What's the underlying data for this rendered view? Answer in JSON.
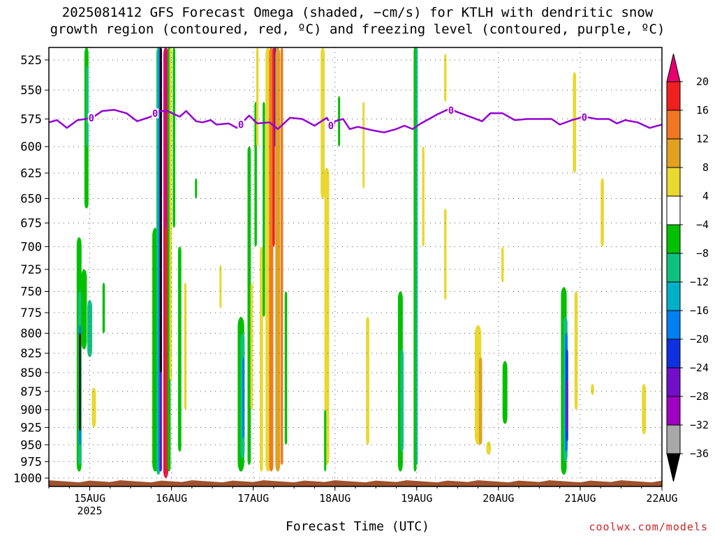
{
  "chart_data": {
    "type": "heatmap",
    "title_lines": [
      "2025081412 GFS Forecast Omega (shaded, −cm/s) for KTLH with dendritic snow",
      "growth region (contoured, red, ºC) and freezing level (contoured, purple, ºC)"
    ],
    "xlabel": "Forecast Time (UTC)",
    "x_ticks": [
      "15AUG",
      "16AUG",
      "17AUG",
      "18AUG",
      "19AUG",
      "20AUG",
      "21AUG",
      "22AUG"
    ],
    "x_year_label": "2025",
    "y_levels": [
      525,
      550,
      575,
      600,
      625,
      650,
      675,
      700,
      725,
      750,
      775,
      800,
      825,
      850,
      875,
      900,
      925,
      950,
      975,
      1000
    ],
    "y_tick_labels": [
      "525",
      "550",
      "575",
      "600",
      "625",
      "650",
      "675",
      "700",
      "725",
      "750",
      "775",
      "800",
      "825",
      "850",
      "875",
      "900",
      "925",
      "950",
      "975",
      "1000"
    ],
    "grid": true,
    "colorbar": {
      "labels": [
        "20",
        "16",
        "12",
        "8",
        "4",
        "−4",
        "−8",
        "−12",
        "−16",
        "−20",
        "−24",
        "−28",
        "−32",
        "−36"
      ],
      "colors": [
        "#e8006f",
        "#f02020",
        "#f07820",
        "#e0a020",
        "#e8d830",
        "#ffffff",
        "#00c000",
        "#10c080",
        "#00b0c8",
        "#0080f0",
        "#1030e0",
        "#7010c8",
        "#a000c0",
        "#a8a8a8"
      ],
      "end_colors": {
        "top": "#e8006f",
        "bottom": "#000000"
      }
    },
    "freezing_level": {
      "label": "0",
      "color": "#9400d3",
      "points": [
        [
          14.5,
          578
        ],
        [
          14.6,
          576
        ],
        [
          14.72,
          583
        ],
        [
          14.85,
          576
        ],
        [
          14.95,
          575
        ],
        [
          15.05,
          573
        ],
        [
          15.15,
          568
        ],
        [
          15.3,
          567
        ],
        [
          15.45,
          570
        ],
        [
          15.58,
          577
        ],
        [
          15.75,
          573
        ],
        [
          15.82,
          568
        ],
        [
          15.95,
          568
        ],
        [
          16.1,
          573
        ],
        [
          16.18,
          568
        ],
        [
          16.3,
          577
        ],
        [
          16.38,
          578
        ],
        [
          16.48,
          576
        ],
        [
          16.55,
          580
        ],
        [
          16.7,
          579
        ],
        [
          16.8,
          583
        ],
        [
          16.95,
          572
        ],
        [
          17.05,
          579
        ],
        [
          17.2,
          578
        ],
        [
          17.3,
          584
        ],
        [
          17.45,
          574
        ],
        [
          17.6,
          575
        ],
        [
          17.75,
          581
        ],
        [
          17.9,
          574
        ],
        [
          17.97,
          583
        ],
        [
          18.0,
          577
        ],
        [
          18.1,
          575
        ],
        [
          18.18,
          584
        ],
        [
          18.28,
          582
        ],
        [
          18.45,
          585
        ],
        [
          18.6,
          587
        ],
        [
          18.75,
          584
        ],
        [
          18.85,
          581
        ],
        [
          18.95,
          584
        ],
        [
          19.05,
          579
        ],
        [
          19.15,
          575
        ],
        [
          19.25,
          571
        ],
        [
          19.4,
          566
        ],
        [
          19.5,
          569
        ],
        [
          19.65,
          573
        ],
        [
          19.8,
          577
        ],
        [
          19.9,
          570
        ],
        [
          20.05,
          570
        ],
        [
          20.2,
          576
        ],
        [
          20.35,
          575
        ],
        [
          20.5,
          575
        ],
        [
          20.65,
          575
        ],
        [
          20.75,
          580
        ],
        [
          20.9,
          576
        ],
        [
          21.05,
          573
        ],
        [
          21.2,
          575
        ],
        [
          21.35,
          575
        ],
        [
          21.45,
          579
        ],
        [
          21.55,
          576
        ],
        [
          21.7,
          578
        ],
        [
          21.85,
          583
        ],
        [
          22.0,
          580
        ],
        [
          22.05,
          580
        ]
      ],
      "contour_labels_at": [
        15.02,
        15.8,
        16.85,
        17.95,
        19.42,
        21.05
      ]
    },
    "omega_streaks": [
      {
        "x": 14.87,
        "top": 690,
        "bottom": 990,
        "w": 0.06,
        "c": "#00c000"
      },
      {
        "x": 14.88,
        "top": 750,
        "bottom": 980,
        "w": 0.04,
        "c": "#10c080"
      },
      {
        "x": 14.88,
        "top": 790,
        "bottom": 950,
        "w": 0.025,
        "c": "#0080f0"
      },
      {
        "x": 14.88,
        "top": 800,
        "bottom": 930,
        "w": 0.012,
        "c": "#202020"
      },
      {
        "x": 14.93,
        "top": 725,
        "bottom": 820,
        "w": 0.07,
        "c": "#00c000"
      },
      {
        "x": 14.96,
        "top": 515,
        "bottom": 660,
        "w": 0.05,
        "c": "#00c000"
      },
      {
        "x": 14.97,
        "top": 530,
        "bottom": 600,
        "w": 0.03,
        "c": "#10c080"
      },
      {
        "x": 15.0,
        "top": 760,
        "bottom": 830,
        "w": 0.06,
        "c": "#10c080"
      },
      {
        "x": 15.05,
        "top": 870,
        "bottom": 925,
        "w": 0.05,
        "c": "#e8d830"
      },
      {
        "x": 15.17,
        "top": 740,
        "bottom": 800,
        "w": 0.03,
        "c": "#00c000"
      },
      {
        "x": 15.8,
        "top": 680,
        "bottom": 990,
        "w": 0.07,
        "c": "#00c000"
      },
      {
        "x": 15.84,
        "top": 515,
        "bottom": 995,
        "w": 0.05,
        "c": "#10c080"
      },
      {
        "x": 15.86,
        "top": 515,
        "bottom": 990,
        "w": 0.04,
        "c": "#0080f0"
      },
      {
        "x": 15.87,
        "top": 515,
        "bottom": 990,
        "w": 0.025,
        "c": "#7010c8"
      },
      {
        "x": 15.87,
        "top": 515,
        "bottom": 850,
        "w": 0.015,
        "c": "#000000"
      },
      {
        "x": 15.93,
        "top": 515,
        "bottom": 1000,
        "w": 0.06,
        "c": "#e8006f"
      },
      {
        "x": 15.93,
        "top": 680,
        "bottom": 1000,
        "w": 0.03,
        "c": "#f02020"
      },
      {
        "x": 15.97,
        "top": 515,
        "bottom": 990,
        "w": 0.04,
        "c": "#00c000"
      },
      {
        "x": 15.99,
        "top": 515,
        "bottom": 860,
        "w": 0.03,
        "c": "#e8d830"
      },
      {
        "x": 16.03,
        "top": 515,
        "bottom": 680,
        "w": 0.03,
        "c": "#00c000"
      },
      {
        "x": 16.1,
        "top": 700,
        "bottom": 960,
        "w": 0.04,
        "c": "#00c000"
      },
      {
        "x": 16.17,
        "top": 740,
        "bottom": 900,
        "w": 0.03,
        "c": "#e8d830"
      },
      {
        "x": 16.3,
        "top": 630,
        "bottom": 650,
        "w": 0.015,
        "c": "#00c000"
      },
      {
        "x": 16.6,
        "top": 720,
        "bottom": 770,
        "w": 0.02,
        "c": "#e8d830"
      },
      {
        "x": 16.85,
        "top": 780,
        "bottom": 990,
        "w": 0.08,
        "c": "#00c000"
      },
      {
        "x": 16.87,
        "top": 800,
        "bottom": 970,
        "w": 0.05,
        "c": "#10c080"
      },
      {
        "x": 16.88,
        "top": 830,
        "bottom": 940,
        "w": 0.025,
        "c": "#0080f0"
      },
      {
        "x": 16.95,
        "top": 600,
        "bottom": 980,
        "w": 0.04,
        "c": "#00c000"
      },
      {
        "x": 16.98,
        "top": 740,
        "bottom": 900,
        "w": 0.03,
        "c": "#e8d830"
      },
      {
        "x": 17.03,
        "top": 560,
        "bottom": 700,
        "w": 0.03,
        "c": "#00c000"
      },
      {
        "x": 17.05,
        "top": 515,
        "bottom": 600,
        "w": 0.03,
        "c": "#e8d830"
      },
      {
        "x": 17.1,
        "top": 700,
        "bottom": 990,
        "w": 0.04,
        "c": "#e8d830"
      },
      {
        "x": 17.13,
        "top": 560,
        "bottom": 780,
        "w": 0.03,
        "c": "#00c000"
      },
      {
        "x": 17.18,
        "top": 515,
        "bottom": 990,
        "w": 0.06,
        "c": "#e8d830"
      },
      {
        "x": 17.22,
        "top": 515,
        "bottom": 990,
        "w": 0.05,
        "c": "#f07820"
      },
      {
        "x": 17.25,
        "top": 515,
        "bottom": 700,
        "w": 0.03,
        "c": "#f02020"
      },
      {
        "x": 17.27,
        "top": 515,
        "bottom": 600,
        "w": 0.025,
        "c": "#7010c8"
      },
      {
        "x": 17.3,
        "top": 515,
        "bottom": 990,
        "w": 0.06,
        "c": "#e0a020"
      },
      {
        "x": 17.35,
        "top": 515,
        "bottom": 980,
        "w": 0.03,
        "c": "#f07820"
      },
      {
        "x": 17.4,
        "top": 750,
        "bottom": 950,
        "w": 0.03,
        "c": "#00c000"
      },
      {
        "x": 17.85,
        "top": 515,
        "bottom": 650,
        "w": 0.05,
        "c": "#e8d830"
      },
      {
        "x": 17.9,
        "top": 620,
        "bottom": 980,
        "w": 0.06,
        "c": "#e8d830"
      },
      {
        "x": 17.88,
        "top": 900,
        "bottom": 990,
        "w": 0.025,
        "c": "#00c000"
      },
      {
        "x": 18.05,
        "top": 555,
        "bottom": 600,
        "w": 0.02,
        "c": "#00c000"
      },
      {
        "x": 18.35,
        "top": 560,
        "bottom": 640,
        "w": 0.025,
        "c": "#e8d830"
      },
      {
        "x": 18.4,
        "top": 780,
        "bottom": 950,
        "w": 0.04,
        "c": "#e8d830"
      },
      {
        "x": 18.8,
        "top": 750,
        "bottom": 990,
        "w": 0.06,
        "c": "#00c000"
      },
      {
        "x": 18.82,
        "top": 820,
        "bottom": 960,
        "w": 0.04,
        "c": "#10c080"
      },
      {
        "x": 18.98,
        "top": 515,
        "bottom": 990,
        "w": 0.035,
        "c": "#00c000"
      },
      {
        "x": 19.0,
        "top": 515,
        "bottom": 980,
        "w": 0.02,
        "c": "#10c080"
      },
      {
        "x": 19.08,
        "top": 600,
        "bottom": 700,
        "w": 0.03,
        "c": "#e8d830"
      },
      {
        "x": 19.35,
        "top": 520,
        "bottom": 560,
        "w": 0.03,
        "c": "#e8d830"
      },
      {
        "x": 19.35,
        "top": 660,
        "bottom": 760,
        "w": 0.03,
        "c": "#e8d830"
      },
      {
        "x": 19.75,
        "top": 790,
        "bottom": 950,
        "w": 0.08,
        "c": "#e8d830"
      },
      {
        "x": 19.78,
        "top": 830,
        "bottom": 950,
        "w": 0.04,
        "c": "#e0a020"
      },
      {
        "x": 19.88,
        "top": 945,
        "bottom": 965,
        "w": 0.06,
        "c": "#e8d830"
      },
      {
        "x": 20.08,
        "top": 835,
        "bottom": 920,
        "w": 0.06,
        "c": "#00c000"
      },
      {
        "x": 20.05,
        "top": 700,
        "bottom": 740,
        "w": 0.03,
        "c": "#e8d830"
      },
      {
        "x": 20.8,
        "top": 745,
        "bottom": 995,
        "w": 0.07,
        "c": "#00c000"
      },
      {
        "x": 20.82,
        "top": 780,
        "bottom": 975,
        "w": 0.05,
        "c": "#10c080"
      },
      {
        "x": 20.83,
        "top": 800,
        "bottom": 960,
        "w": 0.035,
        "c": "#0080f0"
      },
      {
        "x": 20.84,
        "top": 820,
        "bottom": 945,
        "w": 0.02,
        "c": "#1030e0"
      },
      {
        "x": 20.84,
        "top": 860,
        "bottom": 930,
        "w": 0.012,
        "c": "#7010c8"
      },
      {
        "x": 20.93,
        "top": 535,
        "bottom": 625,
        "w": 0.04,
        "c": "#e8d830"
      },
      {
        "x": 20.95,
        "top": 750,
        "bottom": 900,
        "w": 0.04,
        "c": "#e8d830"
      },
      {
        "x": 21.15,
        "top": 865,
        "bottom": 880,
        "w": 0.04,
        "c": "#e8d830"
      },
      {
        "x": 21.27,
        "top": 630,
        "bottom": 700,
        "w": 0.04,
        "c": "#e8d830"
      },
      {
        "x": 21.78,
        "top": 865,
        "bottom": 935,
        "w": 0.05,
        "c": "#e8d830"
      }
    ],
    "ground": {
      "color": "#a0522d",
      "top_level": 1005
    }
  },
  "credit": "coolwx.com/models"
}
